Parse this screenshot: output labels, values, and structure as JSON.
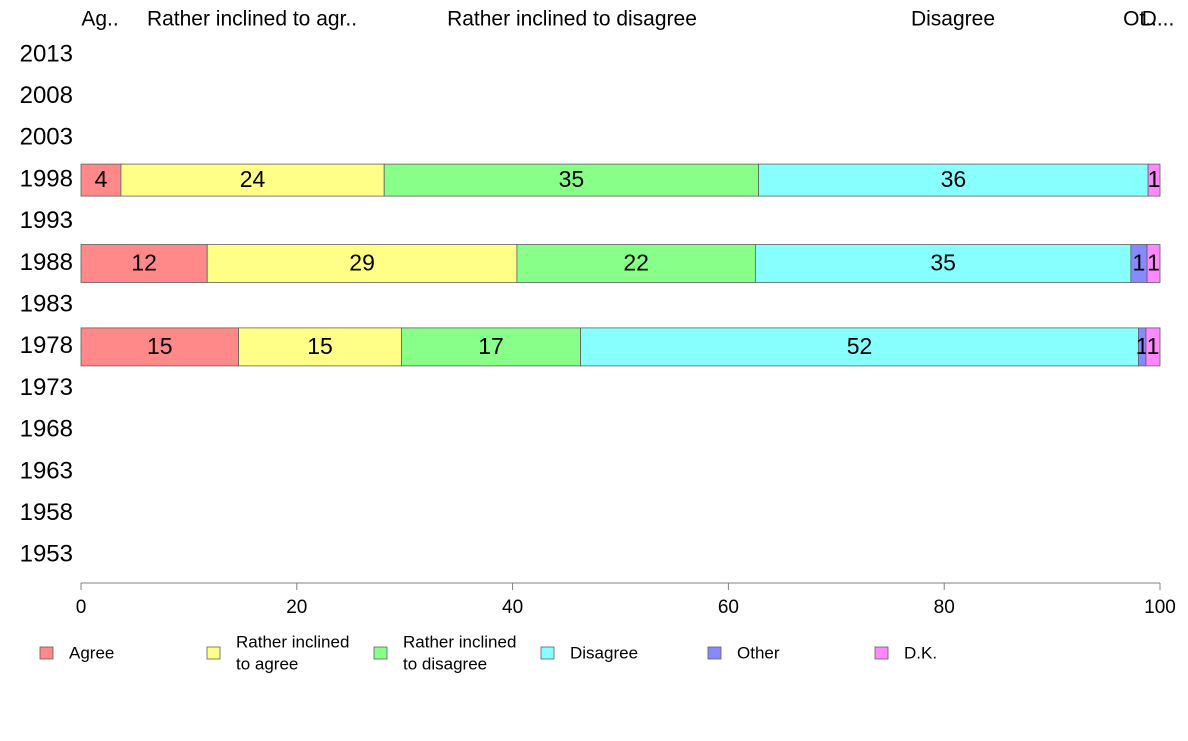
{
  "chart_data": {
    "type": "bar",
    "orientation": "horizontal",
    "stacked": true,
    "title": "",
    "xlabel": "",
    "ylabel": "",
    "xlim": [
      0,
      100
    ],
    "x_ticks": [
      0,
      20,
      40,
      60,
      80,
      100
    ],
    "grid": false,
    "legend_position": "bottom",
    "categories": [
      "2013",
      "2008",
      "2003",
      "1998",
      "1993",
      "1988",
      "1983",
      "1978",
      "1973",
      "1968",
      "1963",
      "1958",
      "1953"
    ],
    "series": [
      {
        "name": "Agree",
        "color": "#ff8888",
        "values": [
          null,
          null,
          null,
          4,
          null,
          12,
          null,
          15,
          null,
          null,
          null,
          null,
          null
        ]
      },
      {
        "name": "Rather inclined to agree",
        "color": "#ffff88",
        "values": [
          null,
          null,
          null,
          24,
          null,
          29,
          null,
          15,
          null,
          null,
          null,
          null,
          null
        ]
      },
      {
        "name": "Rather inclined to disagree",
        "color": "#88ff88",
        "values": [
          null,
          null,
          null,
          35,
          null,
          22,
          null,
          17,
          null,
          null,
          null,
          null,
          null
        ]
      },
      {
        "name": "Disagree",
        "color": "#88ffff",
        "values": [
          null,
          null,
          null,
          36,
          null,
          35,
          null,
          52,
          null,
          null,
          null,
          null,
          null
        ]
      },
      {
        "name": "Other",
        "color": "#8888ff",
        "values": [
          null,
          null,
          null,
          0,
          null,
          1,
          null,
          1,
          null,
          null,
          null,
          null,
          null
        ]
      },
      {
        "name": "D.K.",
        "color": "#ff88ff",
        "values": [
          null,
          null,
          null,
          1,
          null,
          1,
          null,
          1,
          null,
          null,
          null,
          null,
          null
        ]
      }
    ],
    "bar_composition_percent": {
      "1998": [
        3.7,
        24.4,
        34.7,
        36.1,
        0,
        1.1
      ],
      "1988": [
        11.7,
        28.7,
        22.1,
        34.8,
        1.5,
        1.2
      ],
      "1978": [
        14.6,
        15.1,
        16.6,
        51.7,
        0.7,
        1.3
      ]
    },
    "top_labels": [
      "Ag..",
      "Rather inclined to agr..",
      "Rather inclined to disagree",
      "Disagree",
      "Ot..",
      "D..."
    ],
    "legend": [
      {
        "lines": [
          "Agree"
        ],
        "color": "#ff8888"
      },
      {
        "lines": [
          "Rather inclined",
          "to agree"
        ],
        "color": "#ffff88"
      },
      {
        "lines": [
          "Rather inclined",
          "to disagree"
        ],
        "color": "#88ff88"
      },
      {
        "lines": [
          "Disagree"
        ],
        "color": "#88ffff"
      },
      {
        "lines": [
          "Other"
        ],
        "color": "#8888ff"
      },
      {
        "lines": [
          "D.K."
        ],
        "color": "#ff88ff"
      }
    ]
  }
}
